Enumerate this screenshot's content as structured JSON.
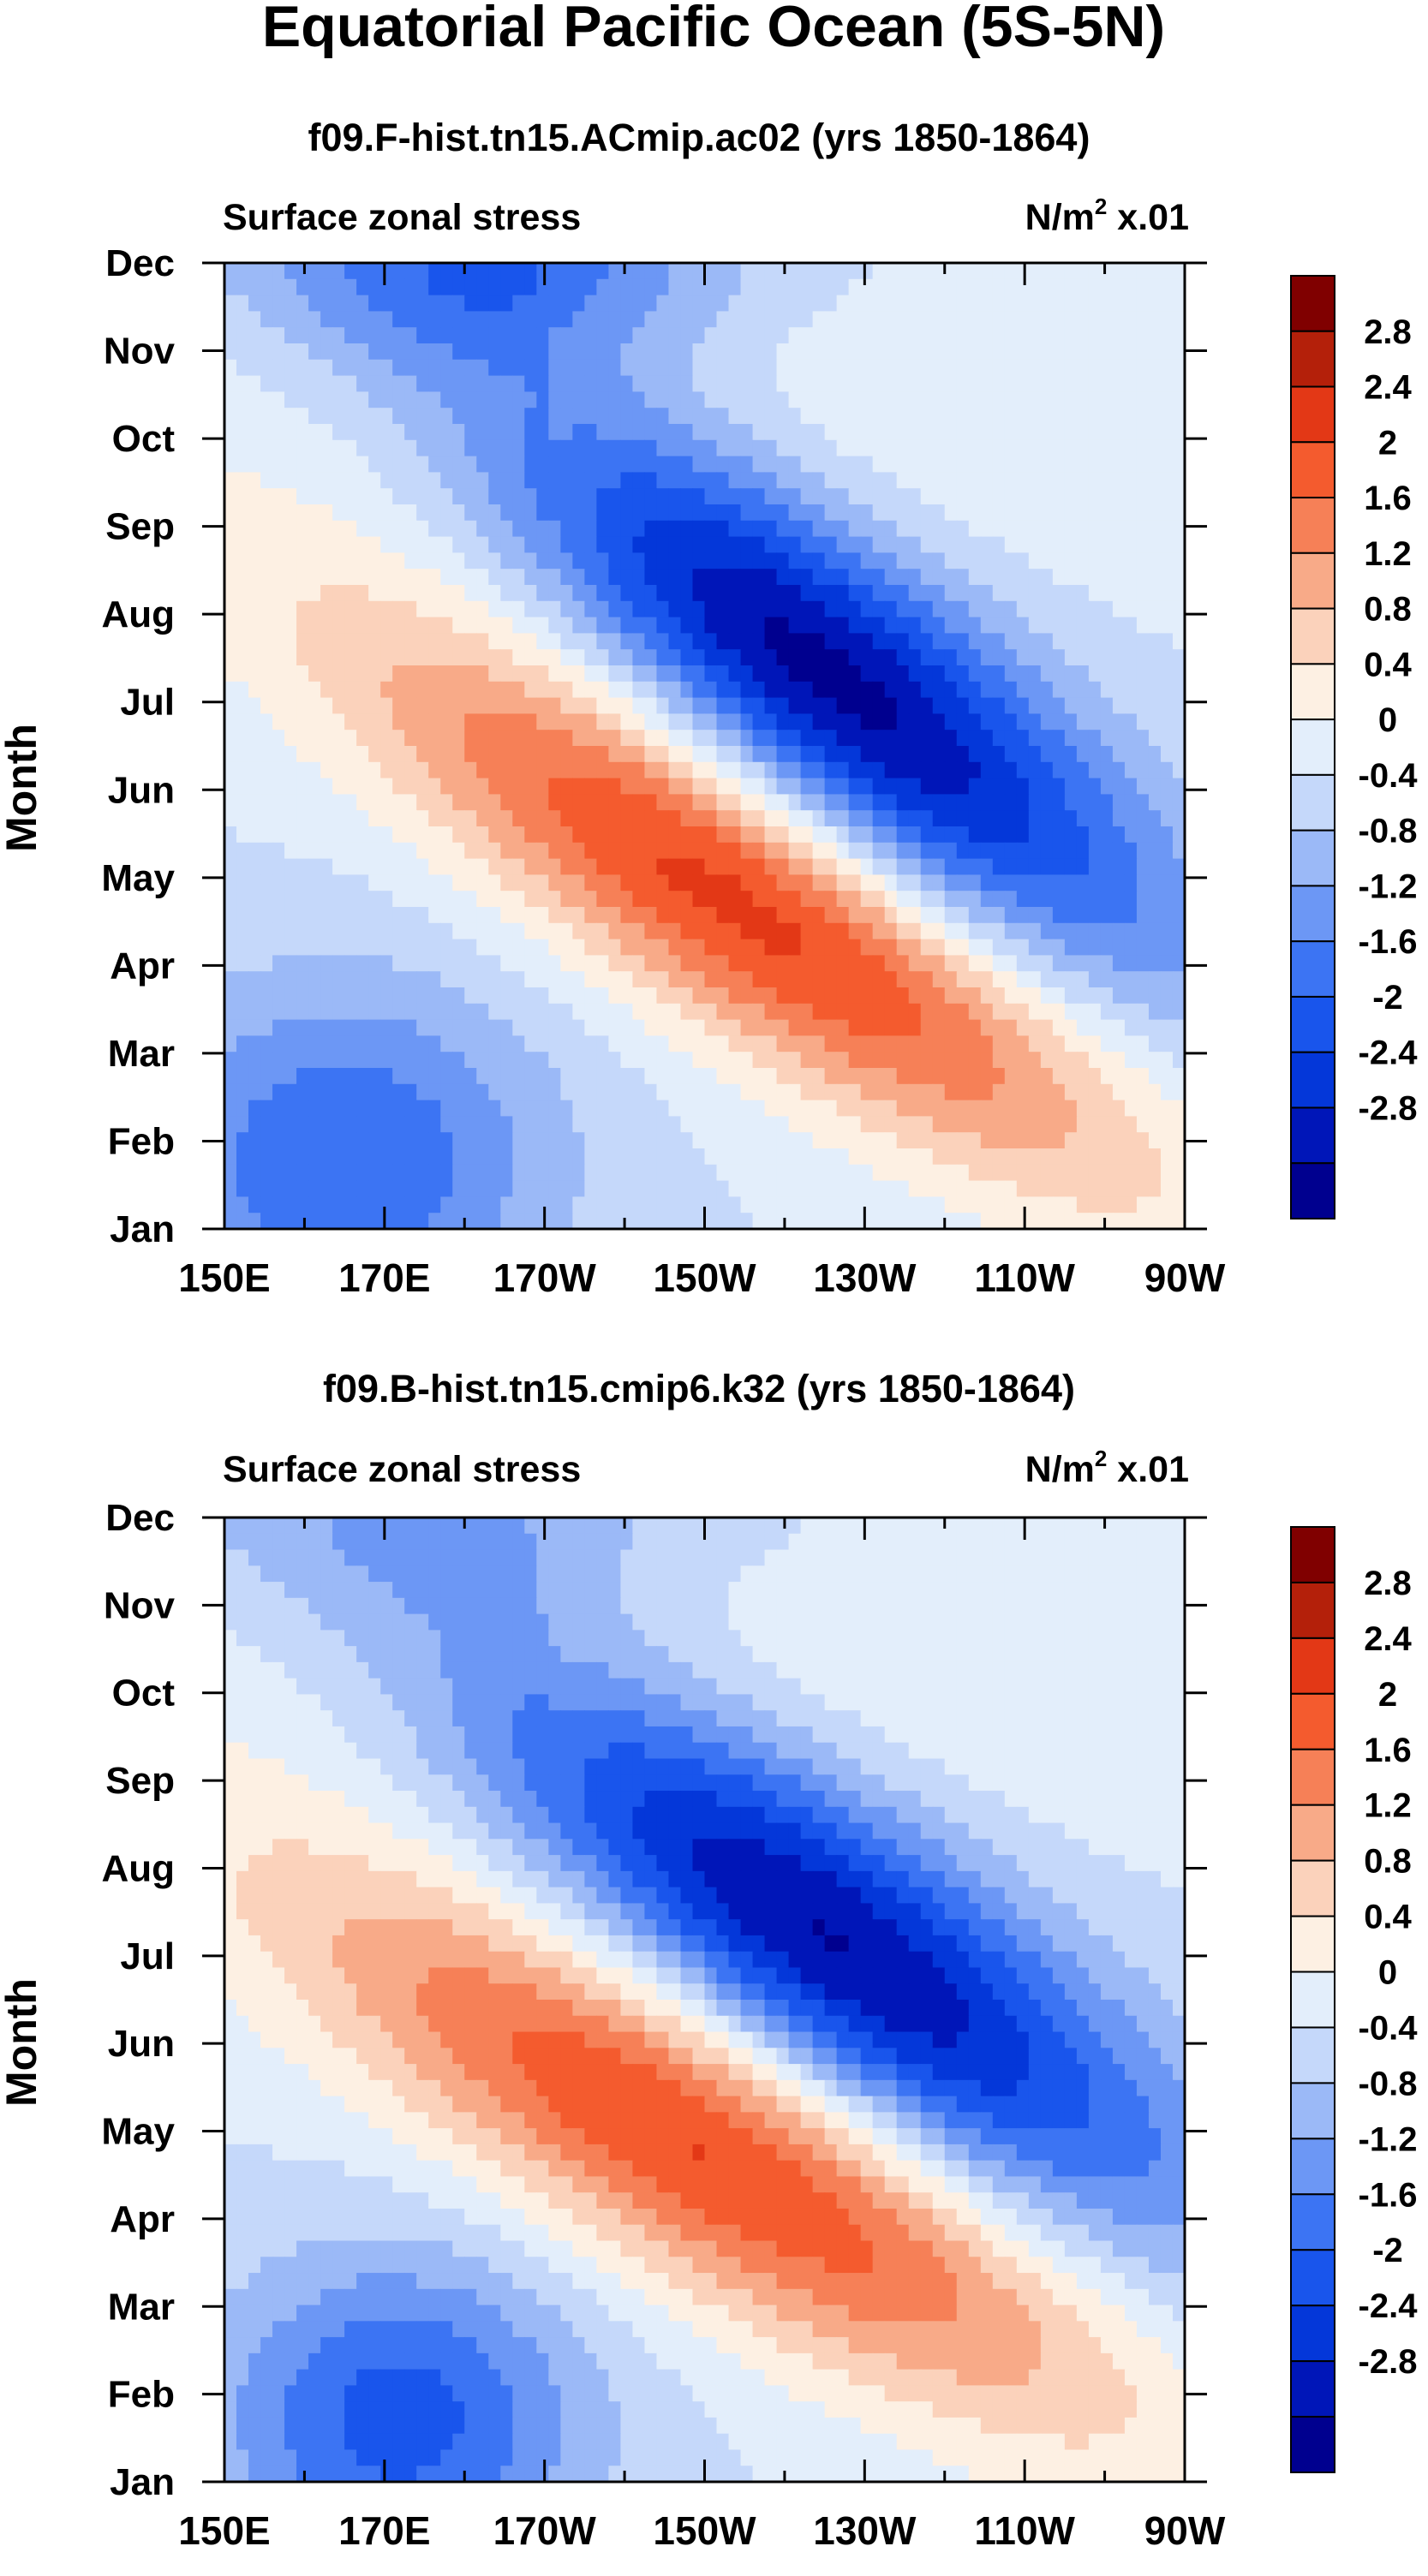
{
  "page_title": "Equatorial Pacific Ocean (5S-5N)",
  "units_prefix": "N/m",
  "units_exp": "2",
  "units_suffix": " x.01",
  "y_axis_label": "Month",
  "chart_data": [
    {
      "type": "heatmap",
      "title": "f09.F-hist.tn15.ACmip.ac02 (yrs 1850-1864)",
      "subtitle_left": "Surface zonal stress",
      "subtitle_right": "N/m² x.01",
      "xlabel": "",
      "ylabel": "Month",
      "x_ticks": [
        "150E",
        "170E",
        "170W",
        "150W",
        "130W",
        "110W",
        "90W"
      ],
      "y_ticks": [
        "Jan",
        "Feb",
        "Mar",
        "Apr",
        "May",
        "Jun",
        "Jul",
        "Aug",
        "Sep",
        "Oct",
        "Nov",
        "Dec"
      ],
      "xlim_deg_east": [
        150,
        270
      ],
      "ylim_month": [
        1,
        12
      ],
      "field": {
        "negative_center": {
          "lon_east": 225,
          "month": 7.3,
          "value": -3.0,
          "lon_spread": 30,
          "month_spread": 1.3,
          "tilt": -0.065
        },
        "positive_center": {
          "lon_east": 215,
          "month": 4.7,
          "value": 2.6,
          "lon_spread": 36,
          "month_spread": 1.15,
          "tilt": -0.055
        },
        "early_year_negative": {
          "lon_east": 165,
          "month": 1.8,
          "value": -1.6,
          "lon_spread": 18,
          "month_spread": 1.4
        },
        "late_year_negative": {
          "lon_east": 185,
          "month": 12.0,
          "value": -1.4,
          "lon_spread": 22,
          "month_spread": 0.8
        }
      },
      "colorbar": {
        "labels": [
          "2.8",
          "2.4",
          "2",
          "1.6",
          "1.2",
          "0.8",
          "0.4",
          "0",
          "-0.4",
          "-0.8",
          "-1.2",
          "-1.6",
          "-2",
          "-2.4",
          "-2.8"
        ],
        "levels": [
          -2.8,
          -2.4,
          -2.0,
          -1.6,
          -1.2,
          -0.8,
          -0.4,
          0,
          0.4,
          0.8,
          1.2,
          1.6,
          2.0,
          2.4,
          2.8
        ],
        "colors": [
          "#00008f",
          "#0016b8",
          "#0437d9",
          "#1955ec",
          "#3c74f3",
          "#6c97f5",
          "#9bb9f7",
          "#c5d8fa",
          "#e3eefb",
          "#fdf0e3",
          "#fbd2bb",
          "#f8aa88",
          "#f68057",
          "#f45b2e",
          "#e33816",
          "#b4200a",
          "#800000"
        ]
      }
    },
    {
      "type": "heatmap",
      "title": "f09.B-hist.tn15.cmip6.k32 (yrs 1850-1864)",
      "subtitle_left": "Surface zonal stress",
      "subtitle_right": "N/m² x.01",
      "xlabel": "",
      "ylabel": "Month",
      "x_ticks": [
        "150E",
        "170E",
        "170W",
        "150W",
        "130W",
        "110W",
        "90W"
      ],
      "y_ticks": [
        "Jan",
        "Feb",
        "Mar",
        "Apr",
        "May",
        "Jun",
        "Jul",
        "Aug",
        "Sep",
        "Oct",
        "Nov",
        "Dec"
      ],
      "xlim_deg_east": [
        150,
        270
      ],
      "ylim_month": [
        1,
        12
      ],
      "field": {
        "negative_center": {
          "lon_east": 225,
          "month": 7.2,
          "value": -2.9,
          "lon_spread": 32,
          "month_spread": 1.3,
          "tilt": -0.06
        },
        "positive_center": {
          "lon_east": 210,
          "month": 4.8,
          "value": 2.5,
          "lon_spread": 38,
          "month_spread": 1.2,
          "tilt": -0.05
        },
        "early_year_negative": {
          "lon_east": 172,
          "month": 1.7,
          "value": -1.8,
          "lon_spread": 16,
          "month_spread": 1.3
        },
        "late_year_negative": {
          "lon_east": 180,
          "month": 12.0,
          "value": -0.7,
          "lon_spread": 25,
          "month_spread": 0.8
        }
      },
      "colorbar": {
        "labels": [
          "2.8",
          "2.4",
          "2",
          "1.6",
          "1.2",
          "0.8",
          "0.4",
          "0",
          "-0.4",
          "-0.8",
          "-1.2",
          "-1.6",
          "-2",
          "-2.4",
          "-2.8"
        ],
        "levels": [
          -2.8,
          -2.4,
          -2.0,
          -1.6,
          -1.2,
          -0.8,
          -0.4,
          0,
          0.4,
          0.8,
          1.2,
          1.6,
          2.0,
          2.4,
          2.8
        ],
        "colors": [
          "#00008f",
          "#0016b8",
          "#0437d9",
          "#1955ec",
          "#3c74f3",
          "#6c97f5",
          "#9bb9f7",
          "#c5d8fa",
          "#e3eefb",
          "#fdf0e3",
          "#fbd2bb",
          "#f8aa88",
          "#f68057",
          "#f45b2e",
          "#e33816",
          "#b4200a",
          "#800000"
        ]
      }
    }
  ]
}
